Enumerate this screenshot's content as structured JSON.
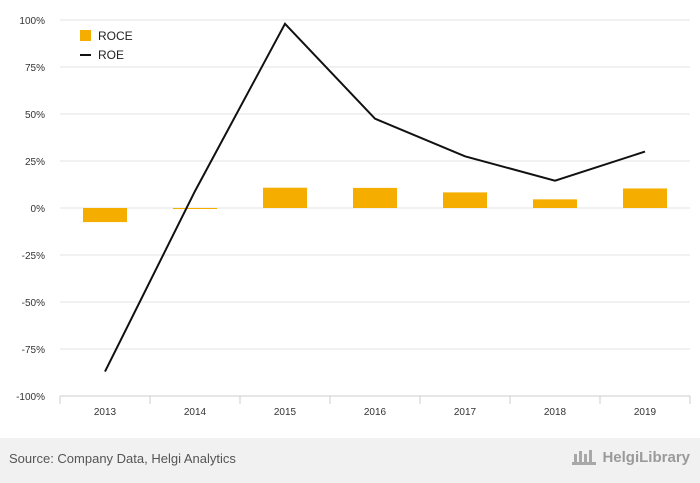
{
  "chart_data": {
    "type": "bar+line",
    "categories": [
      "2013",
      "2014",
      "2015",
      "2016",
      "2017",
      "2018",
      "2019"
    ],
    "series": [
      {
        "name": "ROCE",
        "type": "bar",
        "color": "#f5ad00",
        "values": [
          -7.5,
          -0.3,
          10.8,
          10.7,
          8.3,
          4.6,
          10.4
        ]
      },
      {
        "name": "ROE",
        "type": "line",
        "color": "#111111",
        "values": [
          -87,
          9,
          98,
          47.5,
          27.5,
          14.5,
          30
        ]
      }
    ],
    "yticks": [
      "100%",
      "75%",
      "50%",
      "25%",
      "0%",
      "-25%",
      "-50%",
      "-75%",
      "-100%"
    ],
    "ylim": [
      -100,
      100
    ],
    "grid": true,
    "legend_position": "top-left"
  },
  "footer": {
    "source": "Source: Company Data, Helgi Analytics",
    "brand": "HelgiLibrary"
  }
}
